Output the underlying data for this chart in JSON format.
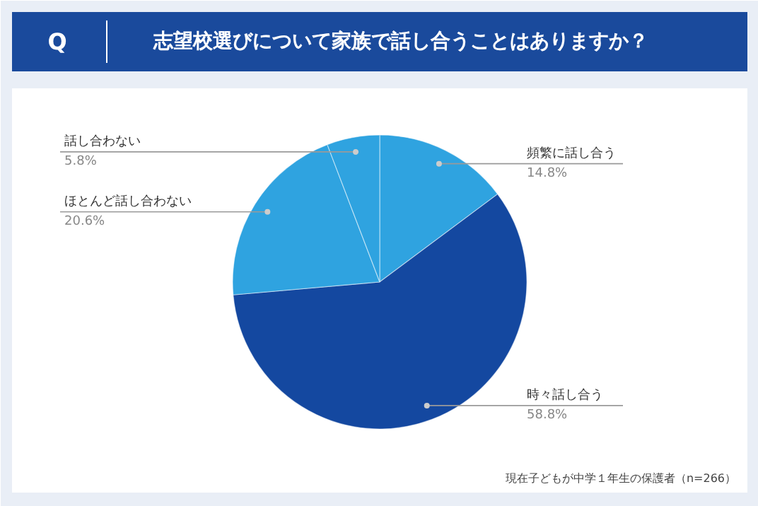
{
  "chart_data": {
    "type": "pie",
    "title": "志望校選びについて家族で話し合うことはありますか？",
    "categories": [
      "頻繁に話し合う",
      "時々話し合う",
      "ほとんど話し合わない",
      "話し合わない"
    ],
    "values": [
      14.8,
      58.8,
      20.6,
      5.8
    ],
    "value_labels": [
      "14.8%",
      "58.8%",
      "20.6%",
      "5.8%"
    ],
    "colors": [
      "#2fa3e0",
      "#1448a0",
      "#2fa3e0",
      "#2fa3e0"
    ],
    "annotations": [
      "Q",
      "現在子どもが中学１年生の保護者（n=266）"
    ]
  }
}
